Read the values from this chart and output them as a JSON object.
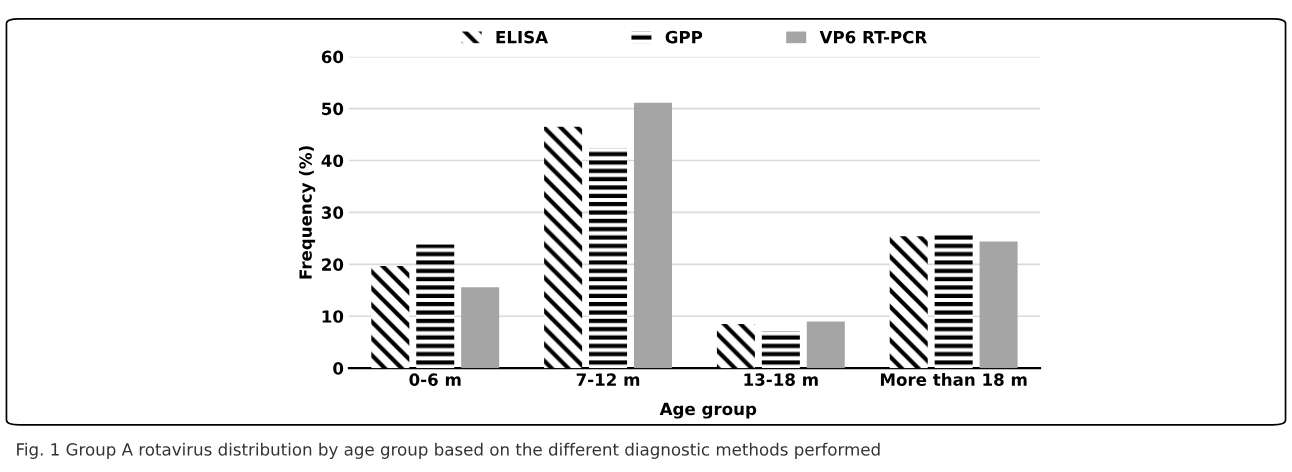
{
  "chart_data": {
    "type": "bar",
    "xlabel": "Age group",
    "ylabel": "Frequency (%)",
    "categories": [
      "0-6 m",
      "7-12 m",
      "13-18 m",
      "More than 18 m"
    ],
    "series": [
      {
        "name": "ELISA",
        "color": "#000000",
        "values": [
          19.7,
          46.5,
          8.5,
          25.4
        ]
      },
      {
        "name": "GPP",
        "color": "#000000",
        "values": [
          23.8,
          42.3,
          7.1,
          25.7
        ]
      },
      {
        "name": "VP6 RT-PCR",
        "color": "#a5a5a5",
        "values": [
          15.6,
          51.1,
          9.0,
          24.4
        ]
      }
    ],
    "ylim": [
      0,
      60
    ],
    "yticks": [
      0,
      10,
      20,
      30,
      40,
      50,
      60
    ],
    "grid": "y",
    "legend": "top",
    "annotations": [
      "Fig. 1 Group A rotavirus distribution by age group based on the different diagnostic methods performed"
    ]
  }
}
